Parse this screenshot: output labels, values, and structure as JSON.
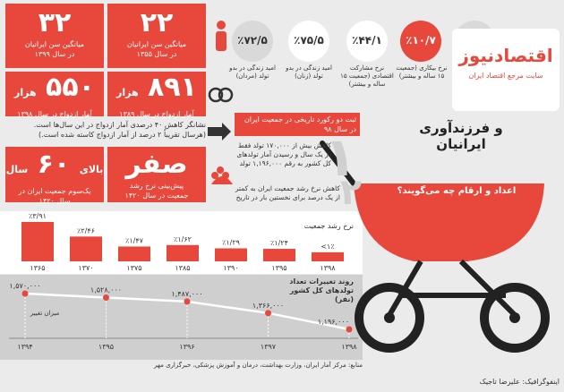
{
  "logo": {
    "name": "اقتصادنیوز",
    "tagline": "سایت مرجع اقتصاد ایران"
  },
  "title": {
    "line1": "و فرزندآوری",
    "line2": "ایرانیان",
    "subtitle": "اعداد و ارقام چه می‌گویند؟"
  },
  "age_stats": [
    {
      "value": "۳۲",
      "lines": [
        "میانگین سن ایرانیان",
        "در سال ۱۳۹۹"
      ]
    },
    {
      "value": "۲۲",
      "lines": [
        "میانگین سن ایرانیان",
        "در سال ۱۳۵۵"
      ]
    }
  ],
  "marriage_stats": [
    {
      "value": "۵۵۰",
      "unit": "هزار",
      "lines": [
        "آمار ازدواج در سال ۱۳۹۸"
      ]
    },
    {
      "value": "۸۹۱",
      "unit": "هزار",
      "lines": [
        "آمار ازدواج در سال ۱۳۸۹"
      ]
    }
  ],
  "marriage_note": [
    "نشانگر کاهش ۴۰ درصدی آمار ازدواج در این سال‌ها است.",
    "(هرسال تقریباً ۲ درصد از آمار ازدواج کاسته شده است.)"
  ],
  "forecast_stats": [
    {
      "prefix": "بالای",
      "value": "۶۰",
      "unit": "سال",
      "lines": [
        "یک‌سوم جمعیت ایران در",
        "سال ۱۴۲۰"
      ]
    },
    {
      "value": "صفر",
      "lines": [
        "پیش‌بینی نرخ رشد",
        "جمعیت در سال ۱۴۲۰"
      ]
    }
  ],
  "indicators": [
    {
      "value": "٪۷۲/۵",
      "label": "امید زندگی در بدو تولد (مردان)"
    },
    {
      "value": "٪۷۵/۵",
      "label": "امید زندگی در بدو تولد (زنان)"
    },
    {
      "value": "٪۴۴/۱",
      "label": "نرخ مشارکت اقتصادی (جمعیت ۱۵ ساله و بیشتر)"
    },
    {
      "value": "٪۱۰/۷",
      "label": "نرخ بیکاری (جمعیت ۱۵ ساله و بیشتر)"
    }
  ],
  "records": {
    "heading": "ثبت دو رکورد تاریخی در جمعیت ایران در سال ۹۸",
    "items": [
      {
        "num": "۱",
        "text": "کاهش بیش از ۱۷۰,۰۰۰ تولد فقط در یک سال و رسیدن آمار تولدهای کل کشور به رقم ۱,۱۹۶,۰۰۰ تولد"
      },
      {
        "num": "۲",
        "text": "کاهش نرخ رشد جمعیت ایران به کمتر از یک درصد برای نخستین بار در تاریخ"
      }
    ]
  },
  "chart_data": [
    {
      "type": "bar",
      "title": "نرخ رشد جمعیت",
      "categories": [
        "۱۳۶۵",
        "۱۳۷۰",
        "۱۳۷۵",
        "۱۳۸۵",
        "۱۳۹۰",
        "۱۳۹۵",
        "۱۳۹۸"
      ],
      "values": [
        3.91,
        2.46,
        1.47,
        1.62,
        1.29,
        1.24,
        0.9
      ],
      "value_labels": [
        "٪۳/۹۱",
        "٪۲/۴۶",
        "٪۱/۴۷",
        "٪۱/۶۲",
        "٪۱/۲۹",
        "٪۱/۲۴",
        "<۱٪"
      ],
      "color": "#e8473c"
    },
    {
      "type": "line",
      "title": "روند تغییرات تعداد تولدهای کل کشور (نفر)",
      "categories": [
        "۱۳۹۴",
        "۱۳۹۵",
        "۱۳۹۶",
        "۱۳۹۷",
        "۱۳۹۸"
      ],
      "values": [
        1570000,
        1528000,
        1487000,
        1366000,
        1196000
      ],
      "value_labels": [
        "۱,۵۷۰,۰۰۰",
        "۱,۵۲۸,۰۰۰",
        "۱,۴۸۷,۰۰۰",
        "۱,۳۶۶,۰۰۰",
        "۱,۱۹۶,۰۰۰"
      ],
      "annotation": "میزان تغییر",
      "color": "#e8473c"
    }
  ],
  "source": "منابع: مرکز آمار ایران، وزارت بهداشت، درمان و آموزش پزشکی، خبرگزاری مهر",
  "credit": "اینفوگرافیک: علیرضا تاجیک"
}
